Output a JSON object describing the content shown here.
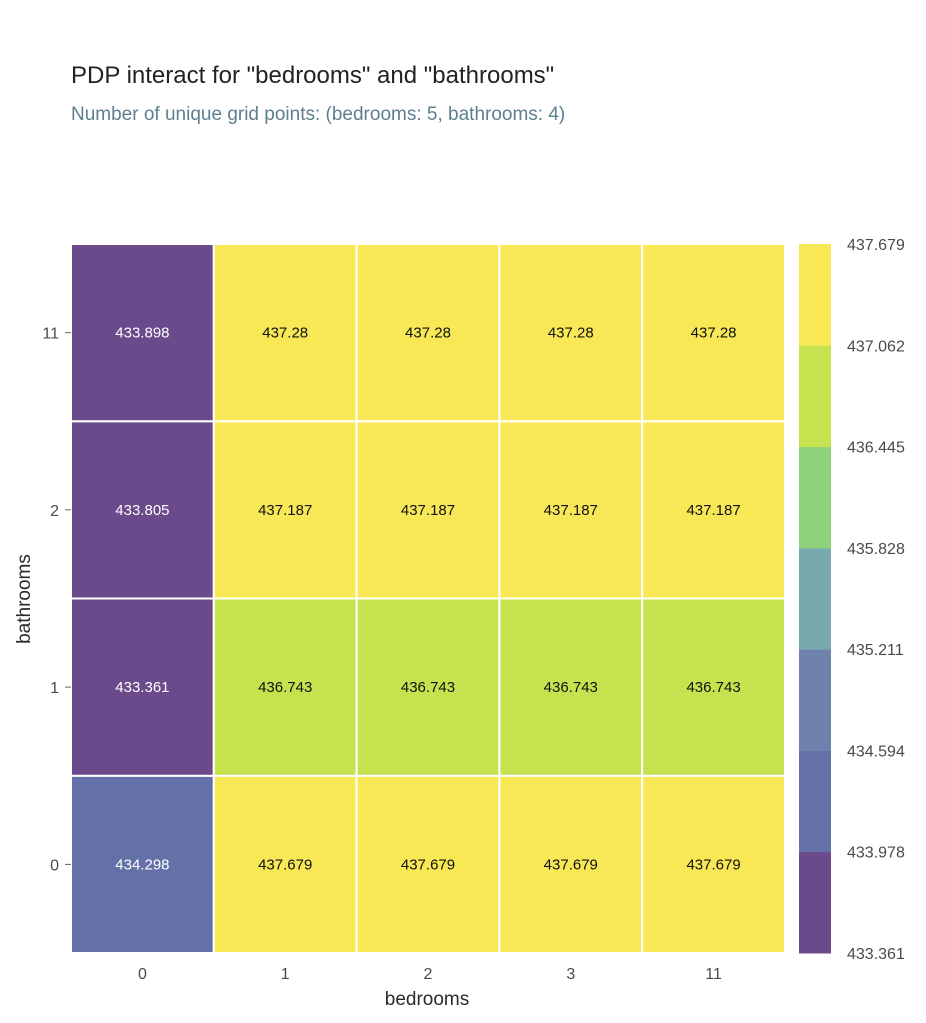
{
  "chart_data": {
    "type": "heatmap",
    "title": "PDP interact for \"bedrooms\" and \"bathrooms\"",
    "subtitle": "Number of unique grid points: (bedrooms: 5, bathrooms: 4)",
    "xlabel": "bedrooms",
    "ylabel": "bathrooms",
    "x_categories": [
      "0",
      "1",
      "2",
      "3",
      "11"
    ],
    "y_categories": [
      "0",
      "1",
      "2",
      "11"
    ],
    "values": [
      [
        434.298,
        437.679,
        437.679,
        437.679,
        437.679
      ],
      [
        433.361,
        436.743,
        436.743,
        436.743,
        436.743
      ],
      [
        433.805,
        437.187,
        437.187,
        437.187,
        437.187
      ],
      [
        433.898,
        437.28,
        437.28,
        437.28,
        437.28
      ]
    ],
    "value_labels": [
      [
        "434.298",
        "437.679",
        "437.679",
        "437.679",
        "437.679"
      ],
      [
        "433.361",
        "436.743",
        "436.743",
        "436.743",
        "436.743"
      ],
      [
        "433.805",
        "437.187",
        "437.187",
        "437.187",
        "437.187"
      ],
      [
        "433.898",
        "437.28",
        "437.28",
        "437.28",
        "437.28"
      ]
    ],
    "colorbar": {
      "ticks": [
        "433.361",
        "433.978",
        "434.594",
        "435.211",
        "435.828",
        "436.445",
        "437.062",
        "437.679"
      ],
      "range": [
        433.361,
        437.679
      ],
      "bins": 7
    },
    "colors": {
      "bins": [
        "#6b4a8b",
        "#6470a8",
        "#6f82ad",
        "#78a9ad",
        "#8dd27a",
        "#c6e24f",
        "#f8e855"
      ],
      "grid_line": "#ffffff",
      "light_text": "#ffffff",
      "dark_text": "#111111"
    }
  }
}
